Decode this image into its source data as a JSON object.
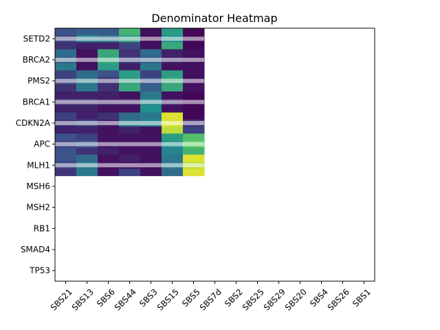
{
  "chart_data": {
    "type": "heatmap",
    "title": "Denominator Heatmap",
    "colormap": "viridis",
    "rows": [
      "SETD2",
      "BRCA2",
      "PMS2",
      "BRCA1",
      "CDKN2A",
      "APC",
      "MLH1",
      "MSH6",
      "MSH2",
      "RB1",
      "SMAD4",
      "TP53"
    ],
    "columns": [
      "SBS21",
      "SBS13",
      "SBS6",
      "SBS44",
      "SBS3",
      "SBS15",
      "SBS5",
      "SBS7d",
      "SBS2",
      "SBS25",
      "SBS29",
      "SBS20",
      "SBS4",
      "SBS26",
      "SBS1"
    ],
    "subrows_per_row": 3,
    "shown_columns": 7,
    "shown_rows": 7,
    "values": [
      [
        [
          0.25,
          0.3,
          0.28,
          0.65,
          0.05,
          0.55,
          0.02
        ],
        [
          0.2,
          0.45,
          0.4,
          0.55,
          0.02,
          0.5,
          0.02
        ],
        [
          0.15,
          0.1,
          0.1,
          0.2,
          0.05,
          0.6,
          0.02
        ]
      ],
      [
        [
          0.35,
          0.05,
          0.6,
          0.15,
          0.35,
          0.1,
          0.05
        ],
        [
          0.3,
          0.05,
          0.6,
          0.2,
          0.3,
          0.1,
          0.05
        ],
        [
          0.4,
          0.05,
          0.55,
          0.1,
          0.4,
          0.05,
          0.05
        ]
      ],
      [
        [
          0.2,
          0.35,
          0.25,
          0.55,
          0.2,
          0.55,
          0.05
        ],
        [
          0.2,
          0.4,
          0.15,
          0.55,
          0.25,
          0.6,
          0.05
        ],
        [
          0.15,
          0.4,
          0.15,
          0.6,
          0.3,
          0.6,
          0.05
        ]
      ],
      [
        [
          0.1,
          0.1,
          0.1,
          0.05,
          0.4,
          0.05,
          0.02
        ],
        [
          0.15,
          0.15,
          0.1,
          0.1,
          0.45,
          0.1,
          0.02
        ],
        [
          0.1,
          0.1,
          0.05,
          0.05,
          0.5,
          0.05,
          0.02
        ]
      ],
      [
        [
          0.2,
          0.1,
          0.15,
          0.35,
          0.4,
          0.95,
          0.02
        ],
        [
          0.15,
          0.2,
          0.1,
          0.4,
          0.45,
          0.95,
          0.15
        ],
        [
          0.1,
          0.1,
          0.05,
          0.1,
          0.05,
          0.9,
          0.2
        ]
      ],
      [
        [
          0.25,
          0.2,
          0.05,
          0.05,
          0.05,
          0.55,
          0.7
        ],
        [
          0.2,
          0.25,
          0.05,
          0.05,
          0.05,
          0.5,
          0.75
        ],
        [
          0.25,
          0.15,
          0.1,
          0.05,
          0.05,
          0.45,
          0.65
        ]
      ],
      [
        [
          0.25,
          0.35,
          0.05,
          0.1,
          0.05,
          0.4,
          0.95
        ],
        [
          0.2,
          0.4,
          0.05,
          0.05,
          0.05,
          0.4,
          0.9
        ],
        [
          0.15,
          0.4,
          0.05,
          0.2,
          0.05,
          0.35,
          0.95
        ]
      ]
    ]
  }
}
